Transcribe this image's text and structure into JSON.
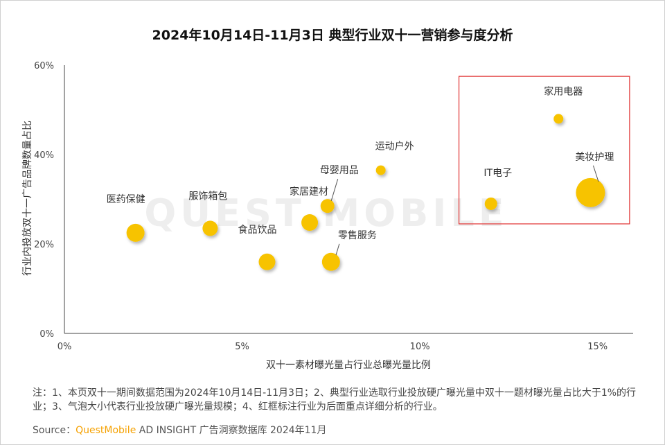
{
  "watermark": "QUEST MOBILE",
  "notes": "注：1、本页双十一期间数据范围为2024年10月14日-11月3日；2、典型行业选取行业投放硬广曝光量中双十一题材曝光量占比大于1%的行业；3、气泡大小代表行业投放硬广曝光量规模；4、红框标注行业为后面重点详细分析的行业。",
  "source": {
    "prefix": "Source：",
    "brand": "QuestMobile",
    "rest": " AD INSIGHT 广告洞察数据库 2024年11月"
  },
  "chart_data": {
    "type": "scatter",
    "title": "2024年10月14日-11月3日 典型行业双十一营销参与度分析",
    "xlabel": "双十一素材曝光量占行业总曝光量比例",
    "ylabel": "行业内投放双十一广告品牌数量占比",
    "xlim": [
      0,
      16
    ],
    "ylim": [
      0,
      60
    ],
    "x_ticks": [
      0,
      5,
      10,
      15
    ],
    "x_tick_labels": [
      "0%",
      "5%",
      "10%",
      "15%"
    ],
    "y_ticks": [
      0,
      20,
      40,
      60
    ],
    "y_tick_labels": [
      "0%",
      "20%",
      "40%",
      "60%"
    ],
    "grid": false,
    "bubble_color": "#f7c300",
    "highlight_color": "#e03030",
    "highlight_box": {
      "xlim": [
        11.1,
        15.9
      ],
      "ylim": [
        24.5,
        57.5
      ]
    },
    "points": [
      {
        "name": "医药保健",
        "x": 2.0,
        "y": 22.5,
        "size": 13
      },
      {
        "name": "服饰箱包",
        "x": 4.1,
        "y": 23.5,
        "size": 11
      },
      {
        "name": "食品饮品",
        "x": 5.7,
        "y": 16.0,
        "size": 12
      },
      {
        "name": "家居建材",
        "x": 6.9,
        "y": 24.8,
        "size": 12
      },
      {
        "name": "母婴用品",
        "x": 7.4,
        "y": 28.5,
        "size": 10
      },
      {
        "name": "零售服务",
        "x": 7.5,
        "y": 16.0,
        "size": 13
      },
      {
        "name": "运动户外",
        "x": 8.9,
        "y": 36.5,
        "size": 7
      },
      {
        "name": "IT电子",
        "x": 12.0,
        "y": 29.0,
        "size": 9
      },
      {
        "name": "家用电器",
        "x": 13.9,
        "y": 48.0,
        "size": 7
      },
      {
        "name": "美妆护理",
        "x": 14.8,
        "y": 31.5,
        "size": 21
      }
    ]
  }
}
